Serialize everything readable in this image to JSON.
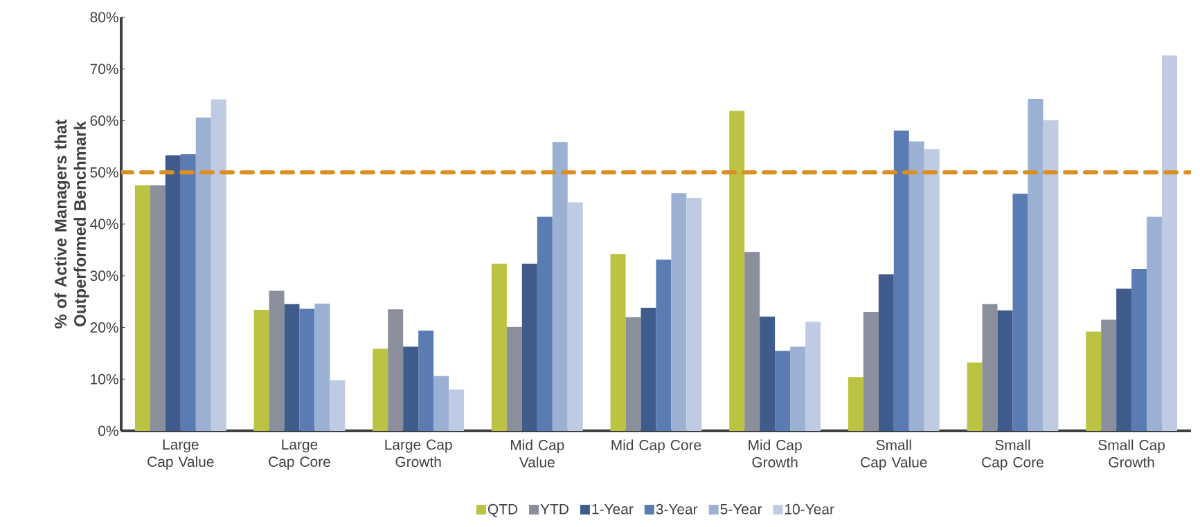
{
  "chart_data": {
    "type": "bar",
    "ylabel": "% of Active Managers that Outperformed Benchmark",
    "categories": [
      "Large Cap Value",
      "Large Cap Core",
      "Large Cap Growth",
      "Mid Cap Value",
      "Mid Cap Core",
      "Mid Cap Growth",
      "Small Cap Value",
      "Small Cap Core",
      "Small Cap Growth"
    ],
    "series": [
      {
        "name": "QTD",
        "color": "#bcc242",
        "values": [
          47.5,
          23.4,
          15.9,
          32.3,
          34.2,
          61.9,
          10.4,
          13.2,
          19.2
        ]
      },
      {
        "name": "YTD",
        "color": "#8b8f9b",
        "values": [
          47.5,
          27.1,
          23.5,
          20.1,
          22.0,
          34.6,
          23.0,
          24.5,
          21.5
        ]
      },
      {
        "name": "1-Year",
        "color": "#3f5b8b",
        "values": [
          53.3,
          24.5,
          16.3,
          32.3,
          23.8,
          22.1,
          30.3,
          23.3,
          27.5
        ]
      },
      {
        "name": "3-Year",
        "color": "#5b7bb3",
        "values": [
          53.5,
          23.6,
          19.4,
          41.4,
          33.1,
          15.5,
          58.1,
          45.9,
          31.3
        ]
      },
      {
        "name": "5-Year",
        "color": "#9cb0d4",
        "values": [
          60.6,
          24.6,
          10.6,
          55.9,
          46.0,
          16.3,
          56.0,
          64.2,
          41.4
        ]
      },
      {
        "name": "10-Year",
        "color": "#bfcbe2",
        "values": [
          64.1,
          9.8,
          8.0,
          44.2,
          45.1,
          21.1,
          54.5,
          60.1,
          72.6
        ]
      }
    ],
    "ylim": [
      0,
      80
    ],
    "yticks": [
      {
        "value": 0,
        "label": "0%"
      },
      {
        "value": 10,
        "label": "10%"
      },
      {
        "value": 20,
        "label": "20%"
      },
      {
        "value": 30,
        "label": "30%"
      },
      {
        "value": 40,
        "label": "40%"
      },
      {
        "value": 50,
        "label": "50%"
      },
      {
        "value": 60,
        "label": "60%"
      },
      {
        "value": 70,
        "label": "70%"
      },
      {
        "value": 80,
        "label": "80%"
      }
    ],
    "ref_lines": [
      {
        "axis": "y",
        "value": 50,
        "color": "#d98f22",
        "line_style": "dashed"
      }
    ],
    "grid": false,
    "legend": "bottom"
  }
}
